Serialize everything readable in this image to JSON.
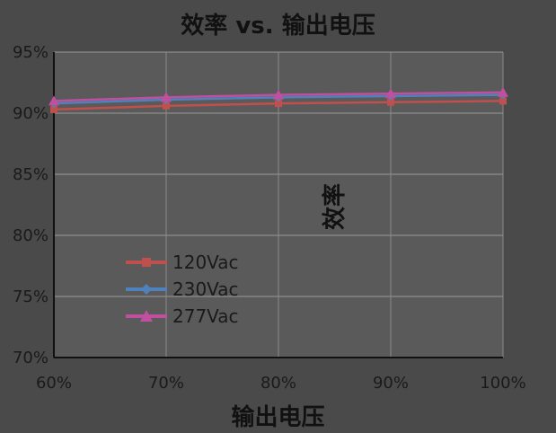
{
  "chart_data": {
    "type": "line",
    "title": "效率 vs. 输出电压",
    "xlabel": "输出电压",
    "ylabel": "效率",
    "x_ticks": [
      "60%",
      "70%",
      "80%",
      "90%",
      "100%"
    ],
    "y_ticks": [
      "70%",
      "75%",
      "80%",
      "85%",
      "90%",
      "95%"
    ],
    "xlim": [
      60,
      100
    ],
    "ylim": [
      70,
      95
    ],
    "legend": [
      "120Vac",
      "230Vac",
      "277Vac"
    ],
    "legend_placement": "center",
    "grid": true,
    "colors": {
      "120Vac": "#c0504d",
      "230Vac": "#4f81bd",
      "277Vac": "#c0509f"
    },
    "series": [
      {
        "name": "120Vac",
        "x": [
          60,
          70,
          80,
          90,
          100
        ],
        "values": [
          90.3,
          90.6,
          90.8,
          90.9,
          91.0
        ]
      },
      {
        "name": "230Vac",
        "x": [
          60,
          70,
          80,
          90,
          100
        ],
        "values": [
          90.8,
          91.1,
          91.3,
          91.4,
          91.5
        ]
      },
      {
        "name": "277Vac",
        "x": [
          60,
          70,
          80,
          90,
          100
        ],
        "values": [
          91.0,
          91.3,
          91.5,
          91.6,
          91.7
        ]
      }
    ]
  }
}
